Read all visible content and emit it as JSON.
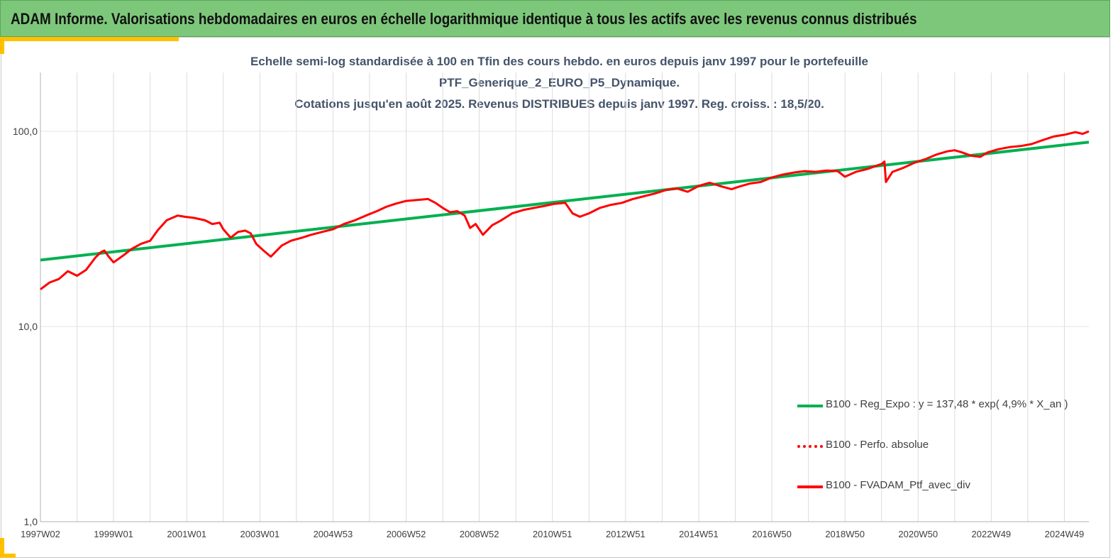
{
  "banner": {
    "title": "ADAM Informe. Valorisations hebdomadaires en euros en échelle logarithmique identique à tous les actifs avec les revenus connus distribués"
  },
  "colors": {
    "banner_bg": "#7dc77b",
    "accent": "#ffc000",
    "regression": "#00b050",
    "series": "#ff0000",
    "title_text": "#44546a"
  },
  "chart_data": {
    "type": "line",
    "title_lines": [
      "Echelle semi-log standardisée à 100 en Tfin des cours hebdo.  en euros depuis janv 1997 pour le portefeuille",
      "PTF_Generique_2_EURO_P5_Dynamique.",
      "Cotations  jusqu'en août 2025. Revenus DISTRIBUES depuis janv 1997. Reg. croiss. : 18,5/20."
    ],
    "y_scale": "log",
    "ylim": [
      1,
      200
    ],
    "y_ticks": [
      1,
      10,
      100
    ],
    "y_tick_labels": [
      "1,0",
      "10,0",
      "100,0"
    ],
    "x_range": [
      1997.0,
      2025.67
    ],
    "x_ticks": [
      1997.0,
      1999.0,
      2001.0,
      2003.0,
      2005.0,
      2007.0,
      2009.0,
      2011.0,
      2013.0,
      2015.0,
      2017.0,
      2019.0,
      2021.0,
      2023.0,
      2025.0
    ],
    "x_tick_labels": [
      "1997W02",
      "1999W01",
      "2001W01",
      "2003W01",
      "2004W53",
      "2006W52",
      "2008W52",
      "2010W51",
      "2012W51",
      "2014W51",
      "2016W50",
      "2018W50",
      "2020W50",
      "2022W49",
      "2024W49"
    ],
    "grid": "vertical",
    "legend_position": "bottom-right",
    "series": [
      {
        "name": "B100 - Reg_Expo : y = 137,48 * exp( 4,9% *  X_an )",
        "style": "solid",
        "color": "#00b050",
        "x": [
          1997.0,
          2025.67
        ],
        "y": [
          21.9,
          88.0
        ]
      },
      {
        "name": "B100 - Perfo. absolue",
        "style": "dotted",
        "color": "#ff0000",
        "x": [],
        "y": []
      },
      {
        "name": "B100 - FVADAM_Ptf_avec_div",
        "style": "solid",
        "color": "#ff0000",
        "x": [
          1997.0,
          1997.25,
          1997.5,
          1997.75,
          1998.0,
          1998.25,
          1998.5,
          1998.65,
          1998.75,
          1998.85,
          1999.0,
          1999.25,
          1999.5,
          1999.75,
          2000.0,
          2000.2,
          2000.45,
          2000.75,
          2000.95,
          2001.2,
          2001.5,
          2001.7,
          2001.9,
          2002.0,
          2002.2,
          2002.4,
          2002.6,
          2002.75,
          2002.9,
          2003.1,
          2003.3,
          2003.6,
          2003.85,
          2004.15,
          2004.4,
          2004.7,
          2005.0,
          2005.3,
          2005.6,
          2005.9,
          2006.2,
          2006.45,
          2006.7,
          2007.0,
          2007.3,
          2007.6,
          2007.8,
          2008.0,
          2008.2,
          2008.4,
          2008.6,
          2008.75,
          2008.9,
          2009.1,
          2009.35,
          2009.6,
          2009.9,
          2010.2,
          2010.5,
          2010.8,
          2011.05,
          2011.35,
          2011.55,
          2011.75,
          2012.0,
          2012.3,
          2012.6,
          2012.9,
          2013.2,
          2013.5,
          2013.8,
          2014.1,
          2014.4,
          2014.7,
          2015.0,
          2015.3,
          2015.65,
          2015.9,
          2016.1,
          2016.4,
          2016.7,
          2017.0,
          2017.3,
          2017.6,
          2017.9,
          2018.2,
          2018.5,
          2018.8,
          2019.0,
          2019.3,
          2019.6,
          2019.85,
          2020.0,
          2020.08,
          2020.12,
          2020.3,
          2020.6,
          2020.9,
          2021.2,
          2021.5,
          2021.8,
          2022.0,
          2022.2,
          2022.45,
          2022.7,
          2022.9,
          2023.2,
          2023.5,
          2023.8,
          2024.1,
          2024.4,
          2024.7,
          2025.0,
          2025.3,
          2025.5,
          2025.67
        ],
        "y": [
          15.5,
          16.8,
          17.5,
          19.2,
          18.2,
          19.5,
          22.5,
          24.0,
          24.5,
          23.0,
          21.3,
          23.0,
          25.0,
          26.5,
          27.5,
          31.0,
          35.0,
          37.0,
          36.5,
          36.0,
          35.0,
          33.5,
          34.0,
          31.5,
          28.5,
          30.5,
          31.0,
          30.0,
          26.5,
          24.5,
          22.8,
          26.0,
          27.5,
          28.5,
          29.5,
          30.5,
          31.5,
          33.5,
          35.0,
          37.0,
          39.0,
          41.0,
          42.5,
          44.0,
          44.5,
          45.0,
          43.0,
          40.5,
          38.5,
          39.0,
          37.0,
          32.0,
          33.5,
          29.5,
          33.0,
          35.0,
          38.0,
          39.5,
          40.5,
          41.5,
          42.5,
          43.0,
          38.0,
          36.5,
          38.0,
          40.5,
          42.0,
          43.0,
          45.0,
          46.5,
          48.0,
          50.0,
          51.0,
          49.0,
          52.5,
          54.5,
          52.0,
          50.5,
          52.0,
          54.0,
          55.0,
          58.0,
          60.0,
          61.5,
          62.5,
          62.0,
          63.0,
          62.5,
          58.5,
          62.0,
          64.0,
          66.5,
          68.0,
          70.0,
          55.0,
          62.0,
          65.0,
          69.0,
          72.0,
          76.0,
          79.0,
          80.0,
          78.0,
          75.0,
          74.0,
          78.0,
          81.0,
          83.0,
          84.0,
          86.0,
          90.0,
          94.0,
          96.0,
          99.0,
          97.0,
          100.0
        ]
      }
    ]
  }
}
